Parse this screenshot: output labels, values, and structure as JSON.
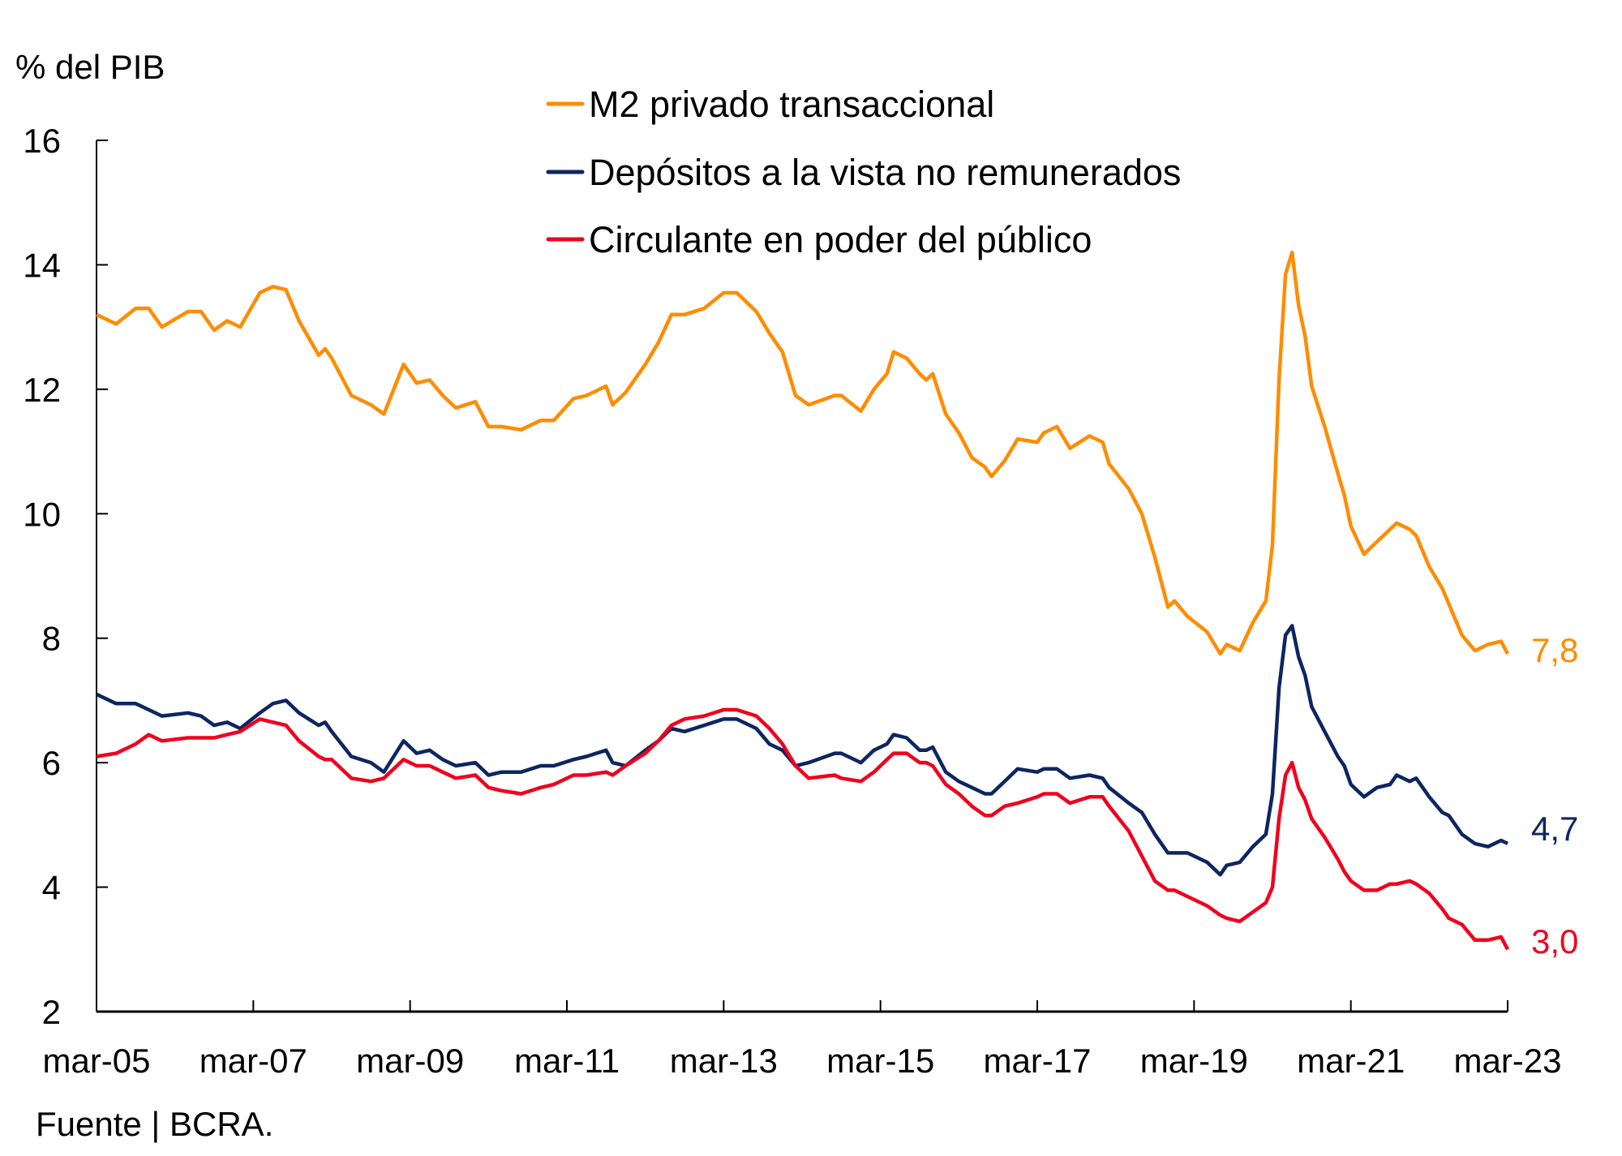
{
  "chart_data": {
    "type": "line",
    "ylabel": "% del PIB",
    "ylim": [
      2,
      16
    ],
    "yticks": [
      "2",
      "4",
      "6",
      "8",
      "10",
      "12",
      "14",
      "16"
    ],
    "xticks": [
      "mar-05",
      "mar-07",
      "mar-09",
      "mar-11",
      "mar-13",
      "mar-15",
      "mar-17",
      "mar-19",
      "mar-21",
      "mar-23"
    ],
    "xlim": [
      "2005-03",
      "2023-03"
    ],
    "grid": false,
    "legend_position": "top-center",
    "source": "Fuente | BCRA.",
    "x": [
      "2005-03",
      "2005-06",
      "2005-09",
      "2005-11",
      "2006-01",
      "2006-05",
      "2006-07",
      "2006-09",
      "2006-11",
      "2007-01",
      "2007-04",
      "2007-06",
      "2007-08",
      "2007-10",
      "2008-01",
      "2008-02",
      "2008-03",
      "2008-06",
      "2008-09",
      "2008-11",
      "2009-02",
      "2009-04",
      "2009-06",
      "2009-08",
      "2009-10",
      "2010-01",
      "2010-03",
      "2010-05",
      "2010-08",
      "2010-11",
      "2011-01",
      "2011-04",
      "2011-06",
      "2011-09",
      "2011-10",
      "2011-12",
      "2012-03",
      "2012-05",
      "2012-07",
      "2012-09",
      "2012-12",
      "2013-03",
      "2013-05",
      "2013-08",
      "2013-10",
      "2013-12",
      "2014-02",
      "2014-04",
      "2014-08",
      "2014-09",
      "2014-12",
      "2015-02",
      "2015-04",
      "2015-05",
      "2015-07",
      "2015-09",
      "2015-10",
      "2015-11",
      "2016-01",
      "2016-03",
      "2016-05",
      "2016-07",
      "2016-08",
      "2016-10",
      "2016-12",
      "2017-03",
      "2017-04",
      "2017-06",
      "2017-08",
      "2017-11",
      "2018-01",
      "2018-02",
      "2018-05",
      "2018-07",
      "2018-09",
      "2018-11",
      "2018-12",
      "2019-02",
      "2019-05",
      "2019-07",
      "2019-08",
      "2019-10",
      "2019-12",
      "2020-02",
      "2020-03",
      "2020-04",
      "2020-05",
      "2020-06",
      "2020-07",
      "2020-08",
      "2020-09",
      "2020-11",
      "2021-01",
      "2021-02",
      "2021-03",
      "2021-05",
      "2021-07",
      "2021-09",
      "2021-10",
      "2021-12",
      "2022-01",
      "2022-03",
      "2022-05",
      "2022-06",
      "2022-08",
      "2022-10",
      "2022-12",
      "2023-02",
      "2023-03"
    ],
    "series": [
      {
        "name": "M2 privado transaccional",
        "color": "#FF8C00",
        "end_label": "7,8",
        "values": [
          13.2,
          13.05,
          13.3,
          13.3,
          13.0,
          13.25,
          13.25,
          12.95,
          13.1,
          13.0,
          13.55,
          13.65,
          13.6,
          13.1,
          12.55,
          12.65,
          12.5,
          11.9,
          11.75,
          11.6,
          12.4,
          12.1,
          12.15,
          11.9,
          11.7,
          11.8,
          11.4,
          11.4,
          11.35,
          11.5,
          11.5,
          11.85,
          11.9,
          12.05,
          11.75,
          11.95,
          12.4,
          12.75,
          13.2,
          13.2,
          13.3,
          13.55,
          13.55,
          13.25,
          12.9,
          12.6,
          11.9,
          11.75,
          11.9,
          11.9,
          11.65,
          12.0,
          12.25,
          12.6,
          12.5,
          12.25,
          12.15,
          12.25,
          11.6,
          11.3,
          10.9,
          10.75,
          10.6,
          10.85,
          11.2,
          11.15,
          11.3,
          11.4,
          11.05,
          11.25,
          11.15,
          10.8,
          10.4,
          10.0,
          9.3,
          8.5,
          8.6,
          8.35,
          8.1,
          7.75,
          7.9,
          7.8,
          8.25,
          8.6,
          9.5,
          12.15,
          13.85,
          14.2,
          13.35,
          12.85,
          12.05,
          11.4,
          10.65,
          10.3,
          9.8,
          9.35,
          9.55,
          9.75,
          9.85,
          9.75,
          9.65,
          9.15,
          8.8,
          8.55,
          8.05,
          7.8,
          7.9,
          7.95,
          7.75
        ]
      },
      {
        "name": "Depósitos a la vista no remunerados",
        "color": "#0D2660",
        "end_label": "4,7",
        "values": [
          7.1,
          6.95,
          6.95,
          6.85,
          6.75,
          6.8,
          6.75,
          6.6,
          6.65,
          6.55,
          6.8,
          6.95,
          7.0,
          6.8,
          6.6,
          6.65,
          6.5,
          6.1,
          6.0,
          5.85,
          6.35,
          6.15,
          6.2,
          6.05,
          5.95,
          6.0,
          5.8,
          5.85,
          5.85,
          5.95,
          5.95,
          6.05,
          6.1,
          6.2,
          6.0,
          5.95,
          6.2,
          6.35,
          6.55,
          6.5,
          6.6,
          6.7,
          6.7,
          6.55,
          6.3,
          6.2,
          5.95,
          6.0,
          6.15,
          6.15,
          6.0,
          6.2,
          6.3,
          6.45,
          6.4,
          6.2,
          6.2,
          6.25,
          5.85,
          5.7,
          5.6,
          5.5,
          5.5,
          5.7,
          5.9,
          5.85,
          5.9,
          5.9,
          5.75,
          5.8,
          5.75,
          5.6,
          5.35,
          5.2,
          4.85,
          4.55,
          4.55,
          4.55,
          4.4,
          4.2,
          4.35,
          4.4,
          4.65,
          4.85,
          5.5,
          7.2,
          8.05,
          8.2,
          7.7,
          7.4,
          6.9,
          6.5,
          6.1,
          5.95,
          5.65,
          5.45,
          5.6,
          5.65,
          5.8,
          5.7,
          5.75,
          5.45,
          5.2,
          5.15,
          4.85,
          4.7,
          4.65,
          4.75,
          4.7
        ]
      },
      {
        "name": "Circulante en poder del público",
        "color": "#F0001E",
        "end_label": "3,0",
        "values": [
          6.1,
          6.15,
          6.3,
          6.45,
          6.35,
          6.4,
          6.4,
          6.4,
          6.45,
          6.5,
          6.7,
          6.65,
          6.6,
          6.35,
          6.1,
          6.05,
          6.05,
          5.75,
          5.7,
          5.75,
          6.05,
          5.95,
          5.95,
          5.85,
          5.75,
          5.8,
          5.6,
          5.55,
          5.5,
          5.6,
          5.65,
          5.8,
          5.8,
          5.85,
          5.8,
          5.95,
          6.15,
          6.35,
          6.6,
          6.7,
          6.75,
          6.85,
          6.85,
          6.75,
          6.55,
          6.3,
          5.95,
          5.75,
          5.8,
          5.75,
          5.7,
          5.85,
          6.05,
          6.15,
          6.15,
          6.0,
          6.0,
          5.95,
          5.65,
          5.5,
          5.3,
          5.15,
          5.15,
          5.3,
          5.35,
          5.45,
          5.5,
          5.5,
          5.35,
          5.45,
          5.45,
          5.3,
          4.9,
          4.5,
          4.1,
          3.95,
          3.95,
          3.85,
          3.7,
          3.55,
          3.5,
          3.45,
          3.6,
          3.75,
          4.0,
          5.1,
          5.8,
          6.0,
          5.6,
          5.4,
          5.1,
          4.8,
          4.45,
          4.25,
          4.1,
          3.95,
          3.95,
          4.05,
          4.05,
          4.1,
          4.05,
          3.9,
          3.65,
          3.5,
          3.4,
          3.15,
          3.15,
          3.2,
          3.0
        ]
      }
    ]
  }
}
